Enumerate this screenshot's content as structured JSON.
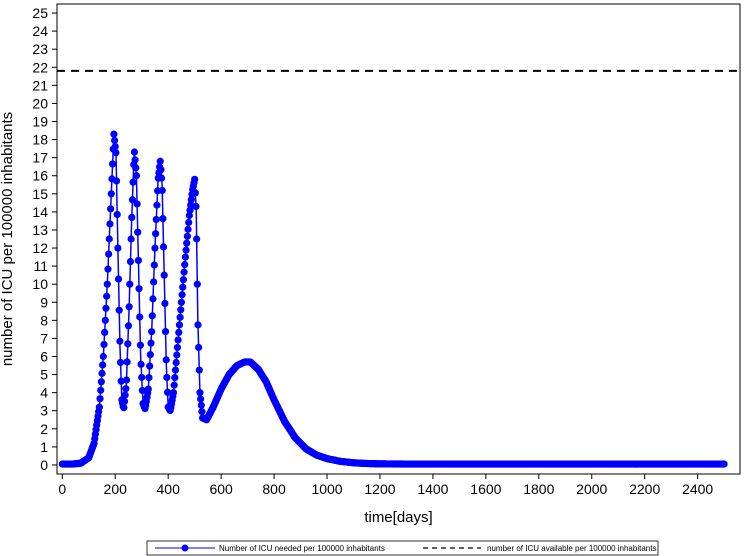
{
  "chart_data": {
    "type": "line",
    "title": "",
    "xlabel": "time[days]",
    "ylabel": "number of ICU per 100000 inhabitants",
    "xlim": [
      -20,
      2560
    ],
    "ylim": [
      -0.5,
      25.5
    ],
    "xticks": [
      0,
      200,
      400,
      600,
      800,
      1000,
      1200,
      1400,
      1600,
      1800,
      2000,
      2200,
      2400
    ],
    "yticks": [
      0,
      1,
      2,
      3,
      4,
      5,
      6,
      7,
      8,
      9,
      10,
      11,
      12,
      13,
      14,
      15,
      16,
      17,
      18,
      19,
      20,
      21,
      22,
      23,
      24,
      25
    ],
    "grid": false,
    "legend_position": "bottom",
    "series": [
      {
        "name": "Number of ICU needed per 100000 inhabitants",
        "color": "#0000ff",
        "style": "solid-with-circle-markers",
        "points": [
          [
            0,
            0.05
          ],
          [
            40,
            0.05
          ],
          [
            70,
            0.1
          ],
          [
            100,
            0.4
          ],
          [
            120,
            1.2
          ],
          [
            140,
            3.2
          ],
          [
            155,
            6.0
          ],
          [
            170,
            10.0
          ],
          [
            185,
            15.0
          ],
          [
            195,
            18.3
          ],
          [
            203,
            17.2
          ],
          [
            210,
            12.0
          ],
          [
            218,
            6.5
          ],
          [
            225,
            3.6
          ],
          [
            232,
            3.1
          ],
          [
            242,
            4.5
          ],
          [
            252,
            8.5
          ],
          [
            262,
            13.5
          ],
          [
            272,
            17.4
          ],
          [
            280,
            16.0
          ],
          [
            288,
            11.0
          ],
          [
            296,
            6.0
          ],
          [
            305,
            3.4
          ],
          [
            313,
            3.1
          ],
          [
            325,
            4.2
          ],
          [
            338,
            7.5
          ],
          [
            350,
            12.0
          ],
          [
            362,
            15.8
          ],
          [
            370,
            16.8
          ],
          [
            377,
            15.5
          ],
          [
            385,
            10.5
          ],
          [
            393,
            5.5
          ],
          [
            400,
            3.2
          ],
          [
            408,
            3.0
          ],
          [
            420,
            4.0
          ],
          [
            435,
            6.5
          ],
          [
            450,
            9.0
          ],
          [
            465,
            11.5
          ],
          [
            480,
            13.8
          ],
          [
            492,
            15.2
          ],
          [
            500,
            15.8
          ],
          [
            506,
            14.0
          ],
          [
            512,
            8.0
          ],
          [
            520,
            4.0
          ],
          [
            530,
            2.6
          ],
          [
            545,
            2.5
          ],
          [
            570,
            3.2
          ],
          [
            600,
            4.2
          ],
          [
            630,
            5.0
          ],
          [
            660,
            5.5
          ],
          [
            690,
            5.7
          ],
          [
            710,
            5.7
          ],
          [
            740,
            5.3
          ],
          [
            770,
            4.6
          ],
          [
            800,
            3.6
          ],
          [
            840,
            2.4
          ],
          [
            880,
            1.5
          ],
          [
            920,
            0.9
          ],
          [
            960,
            0.55
          ],
          [
            1000,
            0.35
          ],
          [
            1050,
            0.2
          ],
          [
            1100,
            0.12
          ],
          [
            1150,
            0.08
          ],
          [
            1200,
            0.06
          ],
          [
            1300,
            0.05
          ],
          [
            1500,
            0.05
          ],
          [
            2000,
            0.05
          ],
          [
            2500,
            0.05
          ]
        ]
      },
      {
        "name": "number of ICU available per 100000 inhabitants",
        "color": "#000000",
        "style": "dashed",
        "constant": 21.8
      }
    ]
  }
}
